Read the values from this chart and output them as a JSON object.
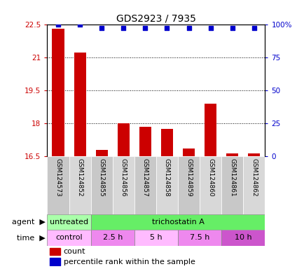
{
  "title": "GDS2923 / 7935",
  "samples": [
    "GSM124573",
    "GSM124852",
    "GSM124855",
    "GSM124856",
    "GSM124857",
    "GSM124858",
    "GSM124859",
    "GSM124860",
    "GSM124861",
    "GSM124862"
  ],
  "red_values": [
    22.3,
    21.2,
    16.8,
    18.0,
    17.85,
    17.75,
    16.85,
    18.9,
    16.65,
    16.65
  ],
  "blue_values": [
    100,
    100,
    97,
    97,
    97,
    97,
    97,
    97,
    97,
    97
  ],
  "ylim_left": [
    16.5,
    22.5
  ],
  "ylim_right": [
    0,
    100
  ],
  "yticks_left": [
    16.5,
    18.0,
    19.5,
    21.0,
    22.5
  ],
  "yticks_right": [
    0,
    25,
    50,
    75,
    100
  ],
  "ytick_labels_left": [
    "16.5",
    "18",
    "19.5",
    "21",
    "22.5"
  ],
  "ytick_labels_right": [
    "0",
    "25",
    "50",
    "75",
    "100%"
  ],
  "agent_labels": [
    {
      "label": "untreated",
      "start": 0,
      "end": 2,
      "color": "#aaffaa"
    },
    {
      "label": "trichostatin A",
      "start": 2,
      "end": 10,
      "color": "#66ee66"
    }
  ],
  "time_labels": [
    {
      "label": "control",
      "start": 0,
      "end": 2,
      "color": "#ffbbff"
    },
    {
      "label": "2.5 h",
      "start": 2,
      "end": 4,
      "color": "#ee88ee"
    },
    {
      "label": "5 h",
      "start": 4,
      "end": 6,
      "color": "#ffbbff"
    },
    {
      "label": "7.5 h",
      "start": 6,
      "end": 8,
      "color": "#ee88ee"
    },
    {
      "label": "10 h",
      "start": 8,
      "end": 10,
      "color": "#cc55cc"
    }
  ],
  "red_color": "#cc0000",
  "blue_color": "#0000cc",
  "bar_width": 0.55,
  "baseline": 16.5,
  "legend_count_label": "count",
  "legend_pct_label": "percentile rank within the sample",
  "cell_colors": [
    "#c8c8c8",
    "#d8d8d8",
    "#c8c8c8",
    "#d8d8d8",
    "#c8c8c8",
    "#d8d8d8",
    "#c8c8c8",
    "#d8d8d8",
    "#c8c8c8",
    "#d8d8d8"
  ]
}
